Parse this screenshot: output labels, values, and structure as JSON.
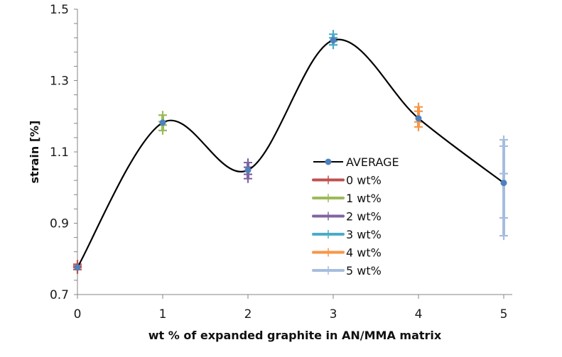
{
  "chart_data": {
    "type": "scatter",
    "title": "",
    "xlabel": "wt % of expanded graphite in AN/MMA matrix",
    "ylabel": "strain [%]",
    "xlim": [
      0,
      5
    ],
    "ylim": [
      0.7,
      1.5
    ],
    "x_ticks": [
      "0",
      "1",
      "2",
      "3",
      "4",
      "5"
    ],
    "y_ticks": [
      "0.7",
      "0.9",
      "1.1",
      "1.3",
      "1.5"
    ],
    "y_minor_step": 0.04,
    "grid": false,
    "legend_position": "center-right",
    "average": {
      "name": "AVERAGE",
      "color": "#000000",
      "marker_color": "#4f81bd",
      "smooth": true,
      "x": [
        0,
        1,
        2,
        3,
        4,
        5
      ],
      "y": [
        0.776,
        1.182,
        1.049,
        1.413,
        1.194,
        1.013
      ]
    },
    "series": [
      {
        "name": "0 wt%",
        "color": "#c0504d",
        "x": 0,
        "values": [
          0.77,
          0.776,
          0.78,
          0.785
        ]
      },
      {
        "name": "1 wt%",
        "color": "#9bbb59",
        "x": 1,
        "values": [
          1.16,
          1.175,
          1.185,
          1.203
        ]
      },
      {
        "name": "2 wt%",
        "color": "#8064a2",
        "x": 2,
        "values": [
          1.025,
          1.037,
          1.057,
          1.07
        ]
      },
      {
        "name": "3 wt%",
        "color": "#4bacc6",
        "x": 3,
        "values": [
          1.4,
          1.41,
          1.42,
          1.43
        ]
      },
      {
        "name": "4 wt%",
        "color": "#f79646",
        "x": 4,
        "values": [
          1.17,
          1.184,
          1.214,
          1.226
        ]
      },
      {
        "name": "5 wt%",
        "color": "#a6bddf",
        "x": 5,
        "values": [
          0.865,
          0.915,
          1.039,
          1.116,
          1.134
        ]
      }
    ]
  }
}
